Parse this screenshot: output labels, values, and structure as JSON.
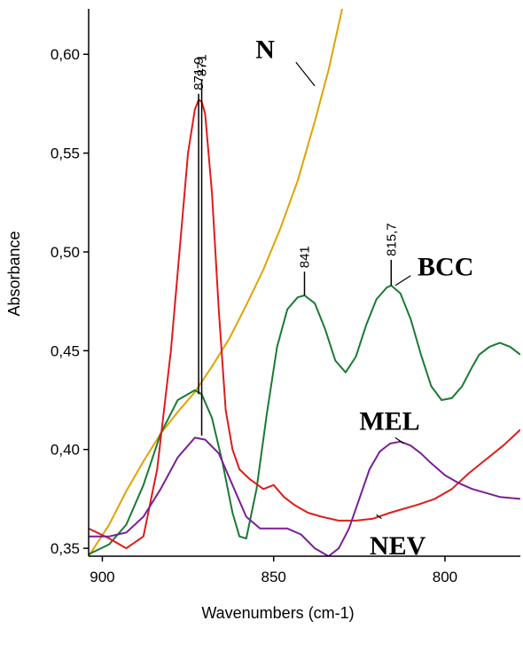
{
  "chart_data": {
    "type": "line",
    "title": "",
    "xlabel": "Wavenumbers (cm-1)",
    "ylabel": "Absorbance",
    "xlim": [
      904,
      778
    ],
    "ylim": [
      0.346,
      0.623
    ],
    "x_reversed": true,
    "grid": false,
    "x_ticks": [
      900,
      850,
      800
    ],
    "x_tick_labels": [
      "900",
      "850",
      "800"
    ],
    "y_ticks": [
      0.35,
      0.4,
      0.45,
      0.5,
      0.55,
      0.6
    ],
    "y_tick_labels": [
      "0,35",
      "0,40",
      "0,45",
      "0,50",
      "0,55",
      "0,60"
    ],
    "series": [
      {
        "name": "N",
        "color": "#e0a300",
        "x": [
          904,
          898,
          893,
          888,
          883,
          878,
          873,
          868,
          863,
          858,
          853,
          848,
          843,
          838,
          834,
          830
        ],
        "y": [
          0.346,
          0.362,
          0.379,
          0.394,
          0.408,
          0.419,
          0.429,
          0.442,
          0.456,
          0.473,
          0.491,
          0.512,
          0.536,
          0.566,
          0.592,
          0.623
        ]
      },
      {
        "name": "BCC",
        "color": "#1a7a35",
        "x": [
          904,
          898,
          893,
          888,
          883,
          878,
          873,
          871,
          868,
          865,
          862,
          860,
          858,
          855,
          852,
          849,
          846,
          843,
          841,
          838,
          835,
          832,
          829,
          826,
          823,
          820,
          817,
          815.7,
          813,
          810,
          807,
          804,
          801,
          798,
          795,
          792,
          790,
          787,
          784,
          781,
          778
        ],
        "y": [
          0.347,
          0.352,
          0.362,
          0.382,
          0.408,
          0.425,
          0.43,
          0.428,
          0.416,
          0.394,
          0.368,
          0.356,
          0.355,
          0.38,
          0.418,
          0.452,
          0.471,
          0.477,
          0.478,
          0.474,
          0.461,
          0.445,
          0.439,
          0.447,
          0.463,
          0.476,
          0.482,
          0.483,
          0.479,
          0.466,
          0.448,
          0.432,
          0.425,
          0.426,
          0.432,
          0.442,
          0.448,
          0.452,
          0.454,
          0.452,
          0.448
        ]
      },
      {
        "name": "",
        "color": "#e01b1b",
        "x": [
          904,
          898,
          893,
          888,
          884,
          880,
          877,
          875,
          873,
          871.9,
          871,
          870,
          868,
          866,
          864,
          862,
          860,
          857,
          853,
          850,
          847,
          844,
          840,
          836,
          831,
          826,
          821,
          816,
          812,
          808,
          803,
          798,
          793,
          788,
          783,
          778
        ],
        "y": [
          0.36,
          0.355,
          0.35,
          0.356,
          0.39,
          0.45,
          0.51,
          0.55,
          0.572,
          0.577,
          0.576,
          0.57,
          0.53,
          0.47,
          0.42,
          0.4,
          0.39,
          0.385,
          0.38,
          0.382,
          0.376,
          0.372,
          0.368,
          0.366,
          0.364,
          0.364,
          0.365,
          0.368,
          0.37,
          0.372,
          0.375,
          0.38,
          0.388,
          0.395,
          0.402,
          0.41
        ]
      },
      {
        "name": "MEL",
        "color": "#7a1f95",
        "x": [
          904,
          898,
          893,
          888,
          883,
          878,
          873,
          870,
          866,
          862,
          858,
          854,
          850,
          846,
          842,
          838,
          834,
          831,
          828,
          825,
          822,
          819,
          816,
          813,
          810,
          807,
          804,
          800,
          796,
          792,
          788,
          784,
          778
        ],
        "y": [
          0.356,
          0.356,
          0.358,
          0.366,
          0.38,
          0.396,
          0.406,
          0.405,
          0.398,
          0.382,
          0.366,
          0.36,
          0.36,
          0.36,
          0.357,
          0.35,
          0.346,
          0.35,
          0.36,
          0.375,
          0.39,
          0.399,
          0.403,
          0.404,
          0.402,
          0.398,
          0.393,
          0.387,
          0.383,
          0.38,
          0.378,
          0.376,
          0.375
        ]
      }
    ],
    "peak_annotations": [
      {
        "label": "871,9",
        "x": 871.9,
        "y_top": 0.58,
        "y_bottom": 0.428
      },
      {
        "label": "871",
        "x": 871,
        "y_top": 0.587,
        "y_bottom": 0.407
      },
      {
        "label": "841",
        "x": 841,
        "y_top": 0.49,
        "y_bottom": 0.478
      },
      {
        "label": "815,7",
        "x": 815.7,
        "y_top": 0.496,
        "y_bottom": 0.483
      }
    ],
    "series_labels": [
      {
        "text": "N",
        "x": 852.5,
        "y": 0.598,
        "pointer": [
          [
            843.5,
            0.596
          ],
          [
            838,
            0.584
          ]
        ]
      },
      {
        "text": "BCC",
        "x": 808,
        "y": 0.488,
        "pointer": [
          [
            810,
            0.488
          ],
          [
            814.5,
            0.483
          ]
        ]
      },
      {
        "text": "MEL",
        "x": 825,
        "y": 0.41,
        "pointer": [
          [
            814.5,
            0.406
          ],
          [
            812,
            0.403
          ]
        ]
      },
      {
        "text": "NEV",
        "x": 822,
        "y": 0.347,
        "pointer": [
          [
            818.5,
            0.365
          ],
          [
            820,
            0.367
          ]
        ]
      }
    ]
  }
}
